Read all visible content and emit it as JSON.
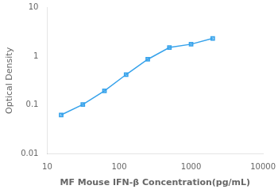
{
  "chart_data": {
    "type": "line",
    "x": [
      15.625,
      31.25,
      62.5,
      125,
      250,
      500,
      1000,
      2000
    ],
    "values": [
      0.063,
      0.103,
      0.195,
      0.42,
      0.86,
      1.5,
      1.75,
      2.3
    ],
    "xlabel": "MF Mouse IFN-β Concentration(pg/mL)",
    "ylabel": "Optical Density",
    "xlim": [
      10,
      10000
    ],
    "ylim": [
      0.01,
      10
    ],
    "xticks": [
      10,
      100,
      1000,
      10000
    ],
    "yticks": [
      0.01,
      0.1,
      1,
      10
    ],
    "log": true,
    "grid": false,
    "marker": "square",
    "line_style": "solid"
  }
}
